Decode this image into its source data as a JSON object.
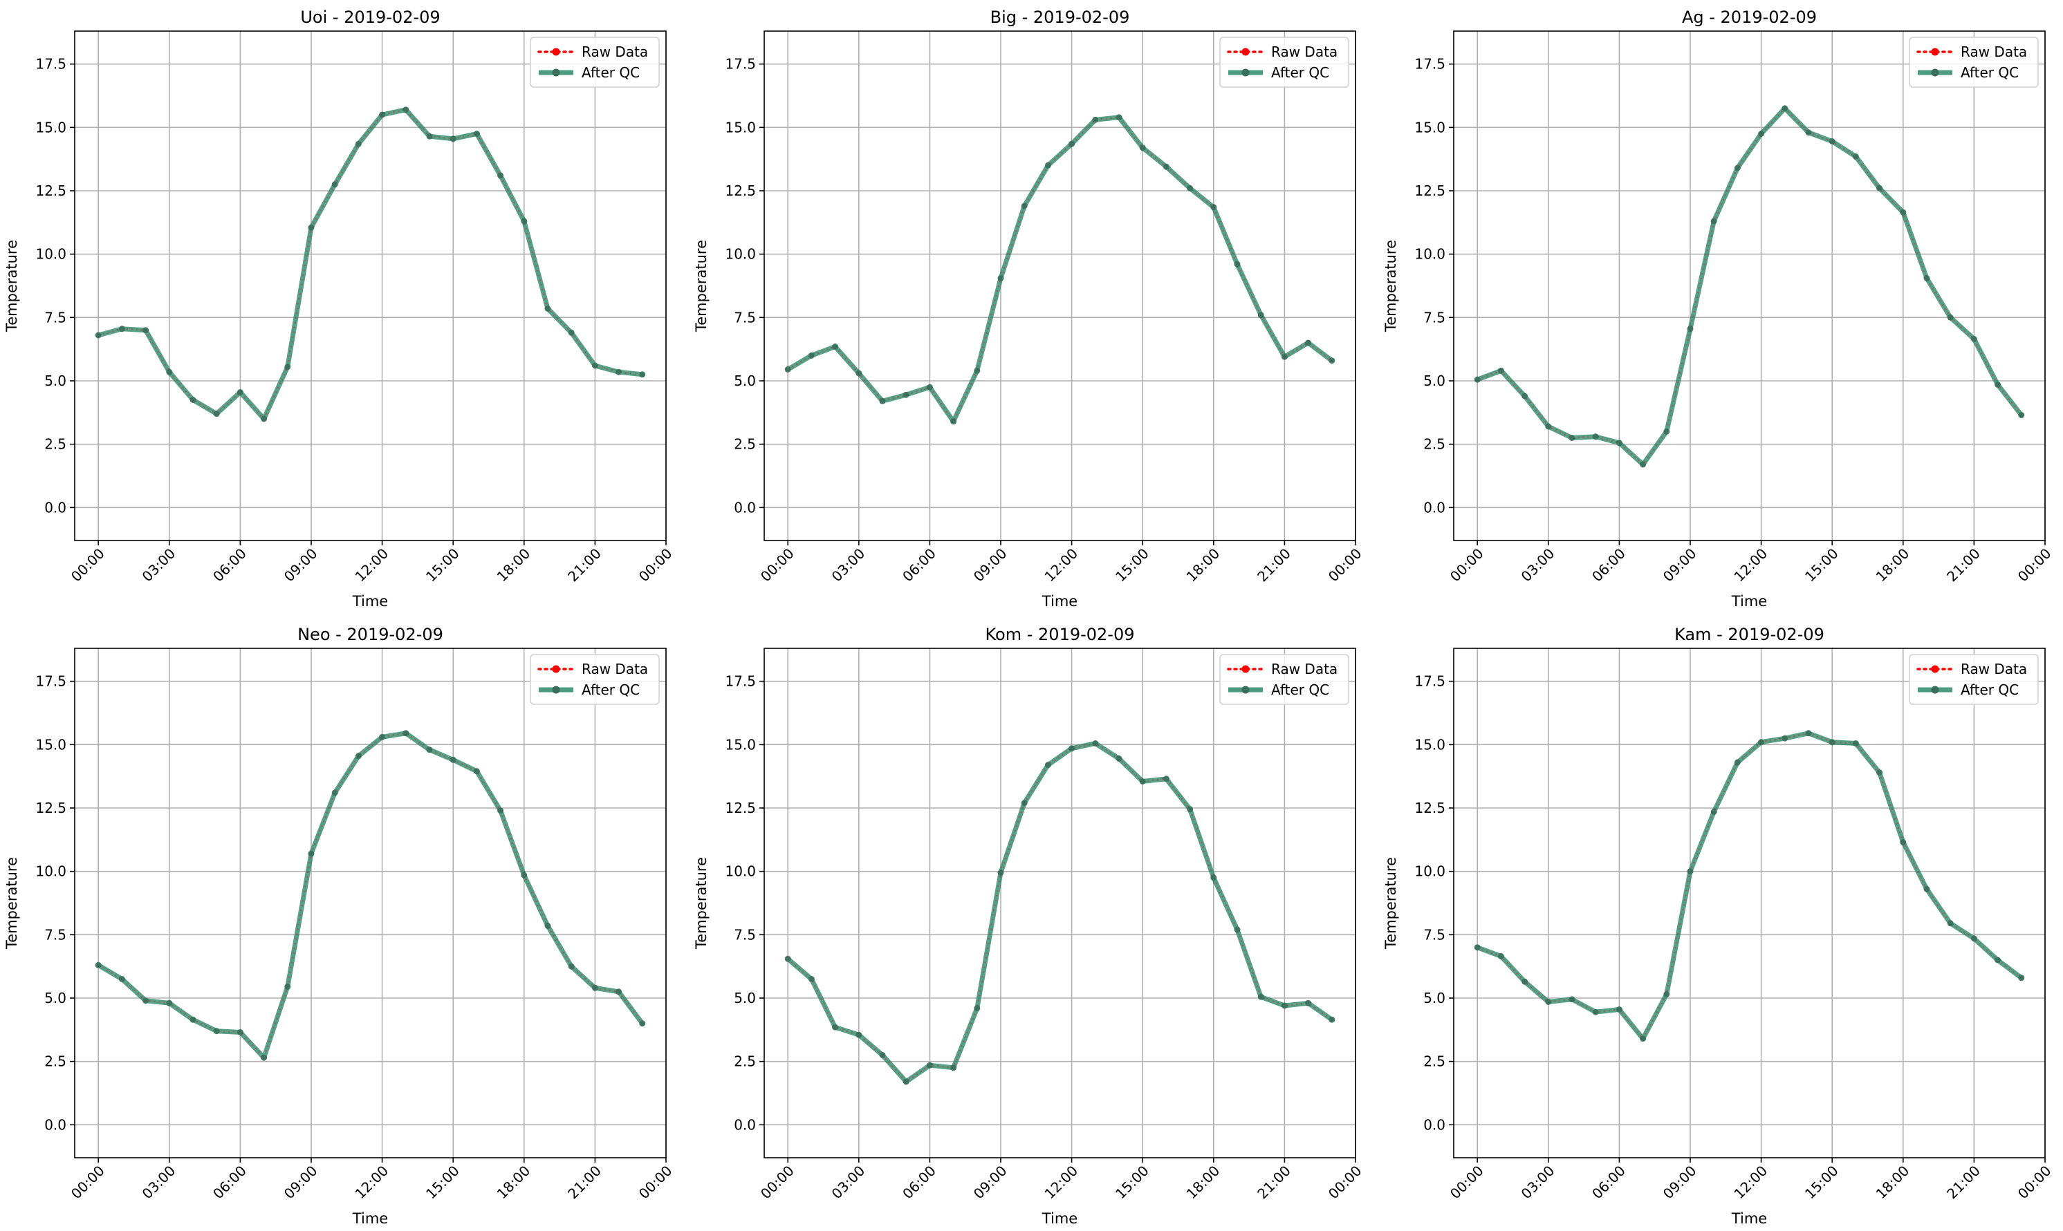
{
  "figure": {
    "legend_labels": {
      "raw": "Raw Data",
      "qc": "After QC"
    },
    "colors": {
      "raw": "#ff0000",
      "qc": "#2a8a6a",
      "grid": "#b0b0b0",
      "axes": "#000000"
    }
  },
  "chart_data": [
    {
      "type": "line",
      "title": "Uoi - 2019-02-09",
      "xlabel": "Time",
      "ylabel": "Temperature",
      "x_ticks": [
        "00:00",
        "03:00",
        "06:00",
        "09:00",
        "12:00",
        "15:00",
        "18:00",
        "21:00",
        "00:00"
      ],
      "y_ticks": [
        "0.0",
        "2.5",
        "5.0",
        "7.5",
        "10.0",
        "12.5",
        "15.0",
        "17.5"
      ],
      "ylim": [
        -1.3,
        18.8
      ],
      "xlim_hours": [
        -1.0,
        24.0
      ],
      "grid": true,
      "legend_position": "top-right",
      "x_hours": [
        0,
        1,
        2,
        3,
        4,
        5,
        6,
        7,
        8,
        9,
        10,
        11,
        12,
        13,
        14,
        15,
        16,
        17,
        18,
        19,
        20,
        21,
        22,
        23
      ],
      "series": [
        {
          "name": "Raw Data",
          "values": [
            6.8,
            7.05,
            7.0,
            5.35,
            4.25,
            3.7,
            4.55,
            3.5,
            5.55,
            11.05,
            12.75,
            14.35,
            15.5,
            15.7,
            14.65,
            14.55,
            14.75,
            13.1,
            11.3,
            7.85,
            6.9,
            5.6,
            5.35,
            5.25
          ]
        },
        {
          "name": "After QC",
          "values": [
            6.8,
            7.05,
            7.0,
            5.35,
            4.25,
            3.7,
            4.55,
            3.5,
            5.55,
            11.05,
            12.75,
            14.35,
            15.5,
            15.7,
            14.65,
            14.55,
            14.75,
            13.1,
            11.3,
            7.85,
            6.9,
            5.6,
            5.35,
            5.25
          ]
        }
      ]
    },
    {
      "type": "line",
      "title": "Big - 2019-02-09",
      "xlabel": "Time",
      "ylabel": "Temperature",
      "x_ticks": [
        "00:00",
        "03:00",
        "06:00",
        "09:00",
        "12:00",
        "15:00",
        "18:00",
        "21:00",
        "00:00"
      ],
      "y_ticks": [
        "0.0",
        "2.5",
        "5.0",
        "7.5",
        "10.0",
        "12.5",
        "15.0",
        "17.5"
      ],
      "ylim": [
        -1.3,
        18.8
      ],
      "xlim_hours": [
        -1.0,
        24.0
      ],
      "grid": true,
      "legend_position": "top-right",
      "x_hours": [
        0,
        1,
        2,
        3,
        4,
        5,
        6,
        7,
        8,
        9,
        10,
        11,
        12,
        13,
        14,
        15,
        16,
        17,
        18,
        19,
        20,
        21,
        22,
        23
      ],
      "series": [
        {
          "name": "Raw Data",
          "values": [
            5.45,
            6.0,
            6.35,
            5.3,
            4.2,
            4.45,
            4.75,
            3.4,
            5.4,
            9.05,
            11.9,
            13.5,
            14.35,
            15.3,
            15.4,
            14.2,
            13.45,
            12.6,
            11.85,
            9.6,
            7.6,
            5.95,
            6.5,
            5.8
          ]
        },
        {
          "name": "After QC",
          "values": [
            5.45,
            6.0,
            6.35,
            5.3,
            4.2,
            4.45,
            4.75,
            3.4,
            5.4,
            9.05,
            11.9,
            13.5,
            14.35,
            15.3,
            15.4,
            14.2,
            13.45,
            12.6,
            11.85,
            9.6,
            7.6,
            5.95,
            6.5,
            5.8
          ]
        }
      ]
    },
    {
      "type": "line",
      "title": "Ag - 2019-02-09",
      "xlabel": "Time",
      "ylabel": "Temperature",
      "x_ticks": [
        "00:00",
        "03:00",
        "06:00",
        "09:00",
        "12:00",
        "15:00",
        "18:00",
        "21:00",
        "00:00"
      ],
      "y_ticks": [
        "0.0",
        "2.5",
        "5.0",
        "7.5",
        "10.0",
        "12.5",
        "15.0",
        "17.5"
      ],
      "ylim": [
        -1.3,
        18.8
      ],
      "xlim_hours": [
        -1.0,
        24.0
      ],
      "grid": true,
      "legend_position": "top-right",
      "x_hours": [
        0,
        1,
        2,
        3,
        4,
        5,
        6,
        7,
        8,
        9,
        10,
        11,
        12,
        13,
        14,
        15,
        16,
        17,
        18,
        19,
        20,
        21,
        22,
        23
      ],
      "series": [
        {
          "name": "Raw Data",
          "values": [
            5.05,
            5.4,
            4.4,
            3.2,
            2.75,
            2.8,
            2.55,
            1.7,
            3.0,
            7.05,
            11.3,
            13.4,
            14.75,
            15.75,
            14.8,
            14.45,
            13.85,
            12.6,
            11.65,
            9.05,
            7.5,
            6.65,
            4.85,
            3.65
          ]
        },
        {
          "name": "After QC",
          "values": [
            5.05,
            5.4,
            4.4,
            3.2,
            2.75,
            2.8,
            2.55,
            1.7,
            3.0,
            7.05,
            11.3,
            13.4,
            14.75,
            15.75,
            14.8,
            14.45,
            13.85,
            12.6,
            11.65,
            9.05,
            7.5,
            6.65,
            4.85,
            3.65
          ]
        }
      ]
    },
    {
      "type": "line",
      "title": "Neo - 2019-02-09",
      "xlabel": "Time",
      "ylabel": "Temperature",
      "x_ticks": [
        "00:00",
        "03:00",
        "06:00",
        "09:00",
        "12:00",
        "15:00",
        "18:00",
        "21:00",
        "00:00"
      ],
      "y_ticks": [
        "0.0",
        "2.5",
        "5.0",
        "7.5",
        "10.0",
        "12.5",
        "15.0",
        "17.5"
      ],
      "ylim": [
        -1.3,
        18.8
      ],
      "xlim_hours": [
        -1.0,
        24.0
      ],
      "grid": true,
      "legend_position": "top-right",
      "x_hours": [
        0,
        1,
        2,
        3,
        4,
        5,
        6,
        7,
        8,
        9,
        10,
        11,
        12,
        13,
        14,
        15,
        16,
        17,
        18,
        19,
        20,
        21,
        22,
        23
      ],
      "series": [
        {
          "name": "Raw Data",
          "values": [
            6.3,
            5.75,
            4.9,
            4.8,
            4.15,
            3.7,
            3.65,
            2.65,
            5.45,
            10.7,
            13.1,
            14.55,
            15.3,
            15.45,
            14.8,
            14.4,
            13.95,
            12.4,
            9.85,
            7.85,
            6.25,
            5.4,
            5.25,
            4.0
          ]
        },
        {
          "name": "After QC",
          "values": [
            6.3,
            5.75,
            4.9,
            4.8,
            4.15,
            3.7,
            3.65,
            2.65,
            5.45,
            10.7,
            13.1,
            14.55,
            15.3,
            15.45,
            14.8,
            14.4,
            13.95,
            12.4,
            9.85,
            7.85,
            6.25,
            5.4,
            5.25,
            4.0
          ]
        }
      ]
    },
    {
      "type": "line",
      "title": "Kom - 2019-02-09",
      "xlabel": "Time",
      "ylabel": "Temperature",
      "x_ticks": [
        "00:00",
        "03:00",
        "06:00",
        "09:00",
        "12:00",
        "15:00",
        "18:00",
        "21:00",
        "00:00"
      ],
      "y_ticks": [
        "0.0",
        "2.5",
        "5.0",
        "7.5",
        "10.0",
        "12.5",
        "15.0",
        "17.5"
      ],
      "ylim": [
        -1.3,
        18.8
      ],
      "xlim_hours": [
        -1.0,
        24.0
      ],
      "grid": true,
      "legend_position": "top-right",
      "x_hours": [
        0,
        1,
        2,
        3,
        4,
        5,
        6,
        7,
        8,
        9,
        10,
        11,
        12,
        13,
        14,
        15,
        16,
        17,
        18,
        19,
        20,
        21,
        22,
        23
      ],
      "series": [
        {
          "name": "Raw Data",
          "values": [
            6.55,
            5.75,
            3.85,
            3.55,
            2.75,
            1.7,
            2.35,
            2.25,
            4.6,
            9.95,
            12.7,
            14.2,
            14.85,
            15.05,
            14.45,
            13.55,
            13.65,
            12.45,
            9.75,
            7.7,
            5.05,
            4.7,
            4.8,
            4.15
          ]
        },
        {
          "name": "After QC",
          "values": [
            6.55,
            5.75,
            3.85,
            3.55,
            2.75,
            1.7,
            2.35,
            2.25,
            4.6,
            9.95,
            12.7,
            14.2,
            14.85,
            15.05,
            14.45,
            13.55,
            13.65,
            12.45,
            9.75,
            7.7,
            5.05,
            4.7,
            4.8,
            4.15
          ]
        }
      ]
    },
    {
      "type": "line",
      "title": "Kam - 2019-02-09",
      "xlabel": "Time",
      "ylabel": "Temperature",
      "x_ticks": [
        "00:00",
        "03:00",
        "06:00",
        "09:00",
        "12:00",
        "15:00",
        "18:00",
        "21:00",
        "00:00"
      ],
      "y_ticks": [
        "0.0",
        "2.5",
        "5.0",
        "7.5",
        "10.0",
        "12.5",
        "15.0",
        "17.5"
      ],
      "ylim": [
        -1.3,
        18.8
      ],
      "xlim_hours": [
        -1.0,
        24.0
      ],
      "grid": true,
      "legend_position": "top-right",
      "x_hours": [
        0,
        1,
        2,
        3,
        4,
        5,
        6,
        7,
        8,
        9,
        10,
        11,
        12,
        13,
        14,
        15,
        16,
        17,
        18,
        19,
        20,
        21,
        22,
        23
      ],
      "series": [
        {
          "name": "Raw Data",
          "values": [
            7.0,
            6.65,
            5.65,
            4.85,
            4.95,
            4.45,
            4.55,
            3.4,
            5.15,
            10.0,
            12.35,
            14.3,
            15.1,
            15.25,
            15.45,
            15.1,
            15.05,
            13.9,
            11.15,
            9.3,
            7.95,
            7.35,
            6.5,
            5.8
          ]
        },
        {
          "name": "After QC",
          "values": [
            7.0,
            6.65,
            5.65,
            4.85,
            4.95,
            4.45,
            4.55,
            3.4,
            5.15,
            10.0,
            12.35,
            14.3,
            15.1,
            15.25,
            15.45,
            15.1,
            15.05,
            13.9,
            11.15,
            9.3,
            7.95,
            7.35,
            6.5,
            5.8
          ]
        }
      ]
    }
  ]
}
